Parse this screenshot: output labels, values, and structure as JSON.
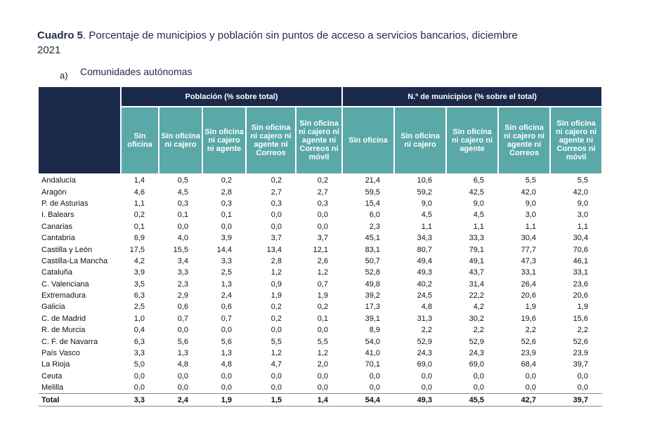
{
  "title": {
    "label": "Cuadro 5",
    "text": ". Porcentaje de municipios y población sin puntos de acceso a servicios bancarios, diciembre 2021"
  },
  "subtitle": {
    "marker": "a)",
    "text": "Comunidades autónomas"
  },
  "table": {
    "groups": [
      "Población (% sobre total)",
      "N.º de municipios (% sobre el total)"
    ],
    "columns": [
      "Sin oficina",
      "Sin oficina ni cajero",
      "Sin oficina ni cajero ni agente",
      "Sin oficina ni cajero ni agente ni Correos",
      "Sin oficina ni cajero ni agente ni Correos ni móvil",
      "Sin oficina",
      "Sin oficina ni cajero",
      "Sin oficina ni cajero ni agente",
      "Sin oficina ni cajero ni agente ni Correos",
      "Sin oficina ni cajero ni agente ni Correos ni móvil"
    ],
    "rows": [
      [
        "Andalucía",
        "1,4",
        "0,5",
        "0,2",
        "0,2",
        "0,2",
        "21,4",
        "10,6",
        "6,5",
        "5,5",
        "5,5"
      ],
      [
        "Aragón",
        "4,6",
        "4,5",
        "2,8",
        "2,7",
        "2,7",
        "59,5",
        "59,2",
        "42,5",
        "42,0",
        "42,0"
      ],
      [
        "P. de Asturias",
        "1,1",
        "0,3",
        "0,3",
        "0,3",
        "0,3",
        "15,4",
        "9,0",
        "9,0",
        "9,0",
        "9,0"
      ],
      [
        "I. Balears",
        "0,2",
        "0,1",
        "0,1",
        "0,0",
        "0,0",
        "6,0",
        "4,5",
        "4,5",
        "3,0",
        "3,0"
      ],
      [
        "Canarias",
        "0,1",
        "0,0",
        "0,0",
        "0,0",
        "0,0",
        "2,3",
        "1,1",
        "1,1",
        "1,1",
        "1,1"
      ],
      [
        "Cantabria",
        "6,9",
        "4,0",
        "3,9",
        "3,7",
        "3,7",
        "45,1",
        "34,3",
        "33,3",
        "30,4",
        "30,4"
      ],
      [
        "Castilla y León",
        "17,5",
        "15,5",
        "14,4",
        "13,4",
        "12,1",
        "83,1",
        "80,7",
        "79,1",
        "77,7",
        "70,6"
      ],
      [
        "Castilla-La Mancha",
        "4,2",
        "3,4",
        "3,3",
        "2,8",
        "2,6",
        "50,7",
        "49,4",
        "49,1",
        "47,3",
        "46,1"
      ],
      [
        "Cataluña",
        "3,9",
        "3,3",
        "2,5",
        "1,2",
        "1,2",
        "52,8",
        "49,3",
        "43,7",
        "33,1",
        "33,1"
      ],
      [
        "C. Valenciana",
        "3,5",
        "2,3",
        "1,3",
        "0,9",
        "0,7",
        "49,8",
        "40,2",
        "31,4",
        "26,4",
        "23,6"
      ],
      [
        "Extremadura",
        "6,3",
        "2,9",
        "2,4",
        "1,9",
        "1,9",
        "39,2",
        "24,5",
        "22,2",
        "20,6",
        "20,6"
      ],
      [
        "Galicia",
        "2,5",
        "0,6",
        "0,6",
        "0,2",
        "0,2",
        "17,3",
        "4,8",
        "4,2",
        "1,9",
        "1,9"
      ],
      [
        "C. de Madrid",
        "1,0",
        "0,7",
        "0,7",
        "0,2",
        "0,1",
        "39,1",
        "31,3",
        "30,2",
        "19,6",
        "15,6"
      ],
      [
        "R. de Murcia",
        "0,4",
        "0,0",
        "0,0",
        "0,0",
        "0,0",
        "8,9",
        "2,2",
        "2,2",
        "2,2",
        "2,2"
      ],
      [
        "C. F. de Navarra",
        "6,3",
        "5,6",
        "5,6",
        "5,5",
        "5,5",
        "54,0",
        "52,9",
        "52,9",
        "52,6",
        "52,6"
      ],
      [
        "País Vasco",
        "3,3",
        "1,3",
        "1,3",
        "1,2",
        "1,2",
        "41,0",
        "24,3",
        "24,3",
        "23,9",
        "23,9"
      ],
      [
        "La Rioja",
        "5,0",
        "4,8",
        "4,8",
        "4,7",
        "2,0",
        "70,1",
        "69,0",
        "69,0",
        "68,4",
        "39,7"
      ],
      [
        "Ceuta",
        "0,0",
        "0,0",
        "0,0",
        "0,0",
        "0,0",
        "0,0",
        "0,0",
        "0,0",
        "0,0",
        "0,0"
      ],
      [
        "Melilla",
        "0,0",
        "0,0",
        "0,0",
        "0,0",
        "0,0",
        "0,0",
        "0,0",
        "0,0",
        "0,0",
        "0,0"
      ],
      [
        "Total",
        "3,3",
        "2,4",
        "1,9",
        "1,5",
        "1,4",
        "54,4",
        "49,3",
        "45,5",
        "42,7",
        "39,7"
      ]
    ]
  }
}
